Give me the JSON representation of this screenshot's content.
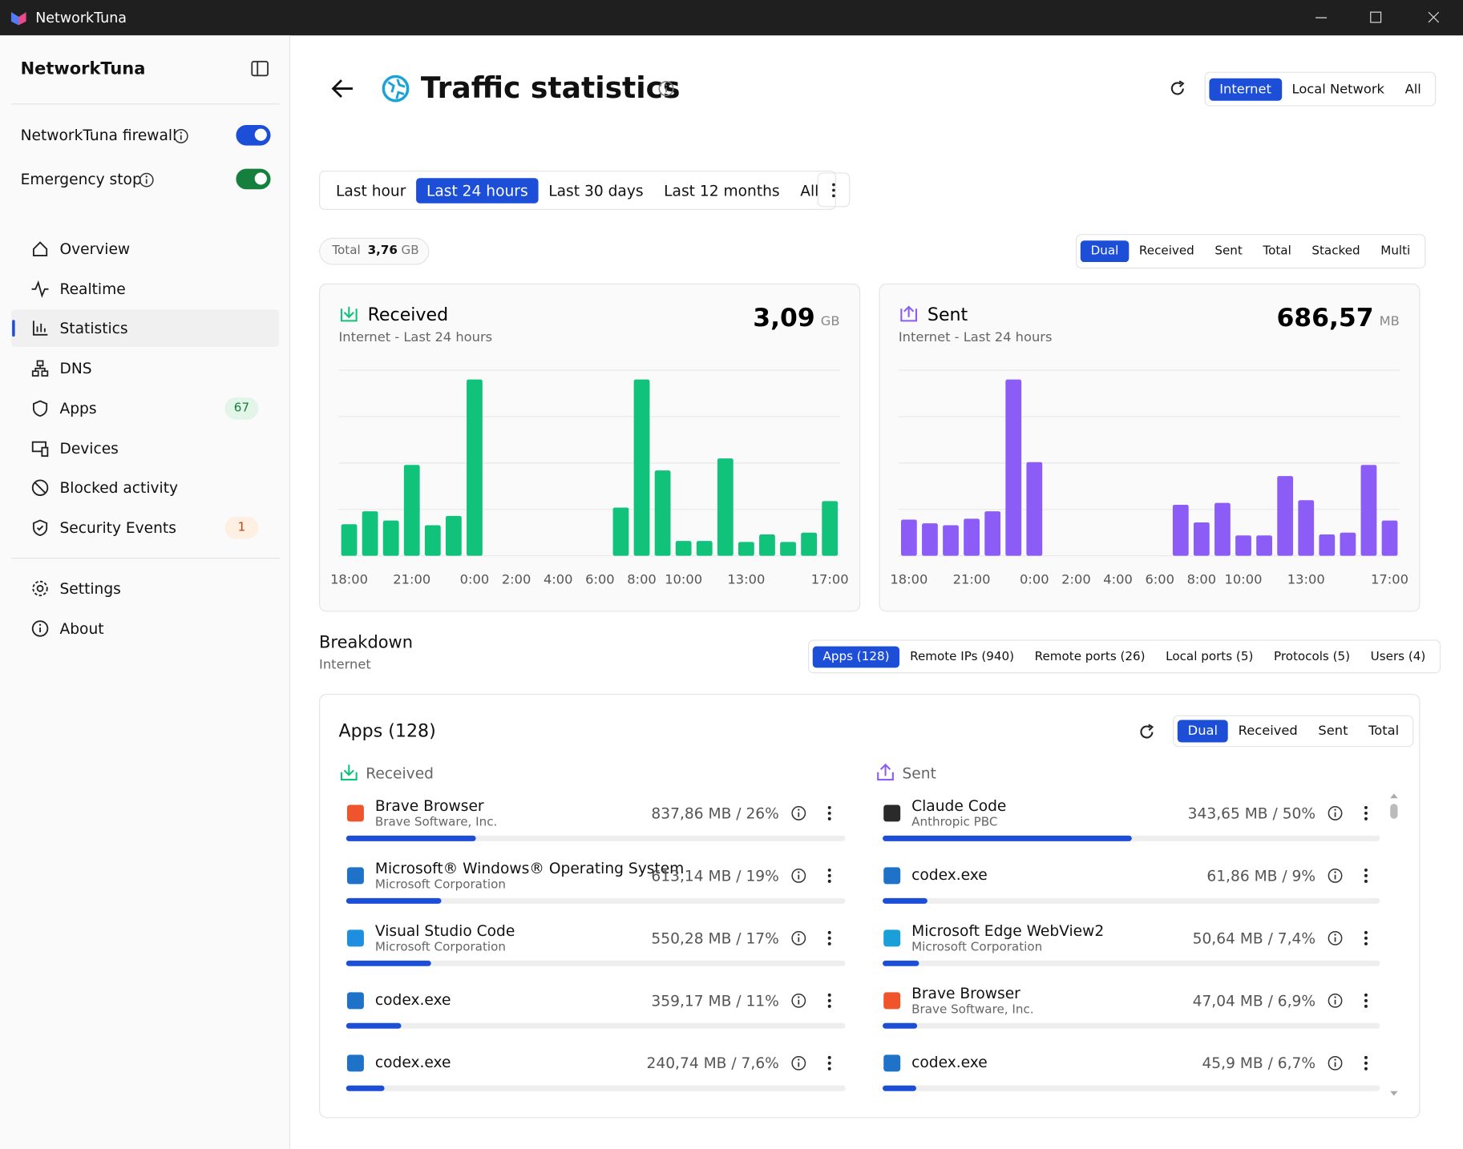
{
  "window": {
    "title": "NetworkTuna"
  },
  "sidebar": {
    "app_name": "NetworkTuna",
    "toggles": [
      {
        "label": "NetworkTuna firewall",
        "on": true,
        "color": "#1d4ed8"
      },
      {
        "label": "Emergency stop",
        "on": true,
        "color": "#15803d"
      }
    ],
    "nav": [
      {
        "label": "Overview"
      },
      {
        "label": "Realtime"
      },
      {
        "label": "Statistics",
        "active": true
      },
      {
        "label": "DNS"
      },
      {
        "label": "Apps",
        "badge": "67",
        "badge_color": "#15803d",
        "badge_bg": "#e3f4e8"
      },
      {
        "label": "Devices"
      },
      {
        "label": "Blocked activity"
      },
      {
        "label": "Security Events",
        "badge": "1",
        "badge_color": "#c2410c",
        "badge_bg": "#fdf0e2"
      }
    ],
    "footer_nav": [
      {
        "label": "Settings"
      },
      {
        "label": "About"
      }
    ]
  },
  "header": {
    "title": "Traffic statistics",
    "scope_tabs": [
      "Internet",
      "Local Network",
      "All"
    ],
    "active_scope": 0
  },
  "range_tabs": {
    "items": [
      "Last hour",
      "Last 24 hours",
      "Last 30 days",
      "Last 12 months",
      "All"
    ],
    "active": 1
  },
  "total": {
    "label": "Total",
    "value": "3,76",
    "unit": "GB"
  },
  "view_tabs": {
    "items": [
      "Dual",
      "Received",
      "Sent",
      "Total",
      "Stacked",
      "Multi"
    ],
    "active": 0
  },
  "charts": [
    {
      "type": "bar",
      "title": "Received",
      "subtitle": "Internet - Last 24 hours",
      "total": "3,09",
      "unit": "GB",
      "color": "#10c27a",
      "categories": [
        "18:00",
        null,
        null,
        "21:00",
        null,
        null,
        "0:00",
        null,
        "2:00",
        null,
        "4:00",
        null,
        "6:00",
        null,
        "8:00",
        null,
        "10:00",
        null,
        null,
        "13:00",
        null,
        null,
        null,
        "17:00"
      ],
      "values": [
        34,
        48,
        38,
        98,
        33,
        43,
        190,
        0,
        0,
        0,
        0,
        0,
        0,
        52,
        190,
        92,
        16,
        16,
        105,
        15,
        23,
        15,
        25,
        59
      ],
      "ylim": [
        0,
        200
      ],
      "yticks": [
        0,
        50,
        100,
        150,
        200
      ],
      "grid": true
    },
    {
      "type": "bar",
      "title": "Sent",
      "subtitle": "Internet - Last 24 hours",
      "total": "686,57",
      "unit": "MB",
      "color": "#8b5cf6",
      "categories": [
        "18:00",
        null,
        null,
        "21:00",
        null,
        null,
        "0:00",
        null,
        "2:00",
        null,
        "4:00",
        null,
        "6:00",
        null,
        "8:00",
        null,
        "10:00",
        null,
        null,
        "13:00",
        null,
        null,
        null,
        "17:00"
      ],
      "values": [
        39,
        35,
        33,
        40,
        48,
        190,
        101,
        0,
        0,
        0,
        0,
        0,
        0,
        55,
        36,
        57,
        22,
        22,
        86,
        60,
        23,
        25,
        98,
        38
      ],
      "ylim": [
        0,
        200
      ],
      "yticks": [
        0,
        50,
        100,
        150,
        200
      ],
      "grid": true
    }
  ],
  "breakdown": {
    "title": "Breakdown",
    "subtitle": "Internet",
    "tabs": [
      "Apps (128)",
      "Remote IPs (940)",
      "Remote ports (26)",
      "Local ports (5)",
      "Protocols (5)",
      "Users (4)"
    ],
    "active_tab": 0,
    "panel_title": "Apps (128)",
    "panel_tabs": [
      "Dual",
      "Received",
      "Sent",
      "Total"
    ],
    "active_panel_tab": 0,
    "received": {
      "title": "Received",
      "items": [
        {
          "name": "Brave Browser",
          "vendor": "Brave Software, Inc.",
          "value_label": "837,86 MB / 26%",
          "percent": 26
        },
        {
          "name": "Microsoft® Windows® Operating System",
          "vendor": "Microsoft Corporation",
          "value_label": "613,14 MB / 19%",
          "percent": 19
        },
        {
          "name": "Visual Studio Code",
          "vendor": "Microsoft Corporation",
          "value_label": "550,28 MB / 17%",
          "percent": 17
        },
        {
          "name": "codex.exe",
          "value_label": "359,17 MB / 11%",
          "percent": 11
        },
        {
          "name": "codex.exe",
          "value_label": "240,74 MB / 7,6%",
          "percent": 7.6
        }
      ]
    },
    "sent": {
      "title": "Sent",
      "items": [
        {
          "name": "Claude Code",
          "vendor": "Anthropic PBC",
          "value_label": "343,65 MB / 50%",
          "percent": 50
        },
        {
          "name": "codex.exe",
          "value_label": "61,86 MB / 9%",
          "percent": 9
        },
        {
          "name": "Microsoft Edge WebView2",
          "vendor": "Microsoft Corporation",
          "value_label": "50,64 MB / 7,4%",
          "percent": 7.4
        },
        {
          "name": "Brave Browser",
          "vendor": "Brave Software, Inc.",
          "value_label": "47,04 MB / 6,9%",
          "percent": 6.9
        },
        {
          "name": "codex.exe",
          "value_label": "45,9 MB / 6,7%",
          "percent": 6.7
        }
      ]
    }
  }
}
